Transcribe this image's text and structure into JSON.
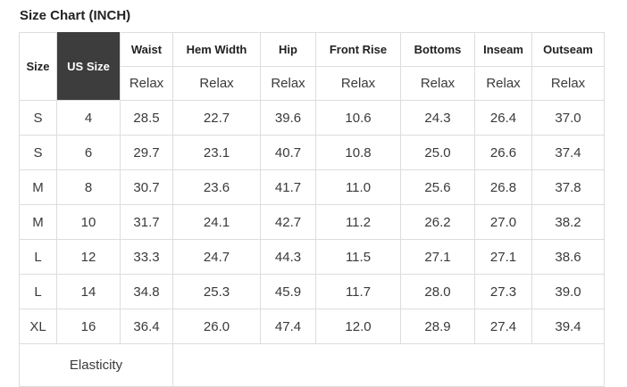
{
  "title": "Size Chart (INCH)",
  "table": {
    "corner_headers": {
      "size": "Size",
      "us_size": "US Size"
    },
    "measure_headers": [
      "Waist",
      "Hem Width",
      "Hip",
      "Front Rise",
      "Bottoms",
      "Inseam",
      "Outseam"
    ],
    "fit_label": "Relax",
    "rows": [
      {
        "size": "S",
        "us": "4",
        "values": [
          "28.5",
          "22.7",
          "39.6",
          "10.6",
          "24.3",
          "26.4",
          "37.0"
        ]
      },
      {
        "size": "S",
        "us": "6",
        "values": [
          "29.7",
          "23.1",
          "40.7",
          "10.8",
          "25.0",
          "26.6",
          "37.4"
        ]
      },
      {
        "size": "M",
        "us": "8",
        "values": [
          "30.7",
          "23.6",
          "41.7",
          "11.0",
          "25.6",
          "26.8",
          "37.8"
        ]
      },
      {
        "size": "M",
        "us": "10",
        "values": [
          "31.7",
          "24.1",
          "42.7",
          "11.2",
          "26.2",
          "27.0",
          "38.2"
        ]
      },
      {
        "size": "L",
        "us": "12",
        "values": [
          "33.3",
          "24.7",
          "44.3",
          "11.5",
          "27.1",
          "27.1",
          "38.6"
        ]
      },
      {
        "size": "L",
        "us": "14",
        "values": [
          "34.8",
          "25.3",
          "45.9",
          "11.7",
          "28.0",
          "27.3",
          "39.0"
        ]
      },
      {
        "size": "XL",
        "us": "16",
        "values": [
          "36.4",
          "26.0",
          "47.4",
          "12.0",
          "28.9",
          "27.4",
          "39.4"
        ]
      }
    ],
    "footer_label": "Elasticity"
  },
  "colors": {
    "us_size_header_bg": "#3d3d3d",
    "us_size_header_text": "#ffffff",
    "border": "#dddddd",
    "text": "#3a3a3a",
    "header_text": "#222222"
  }
}
